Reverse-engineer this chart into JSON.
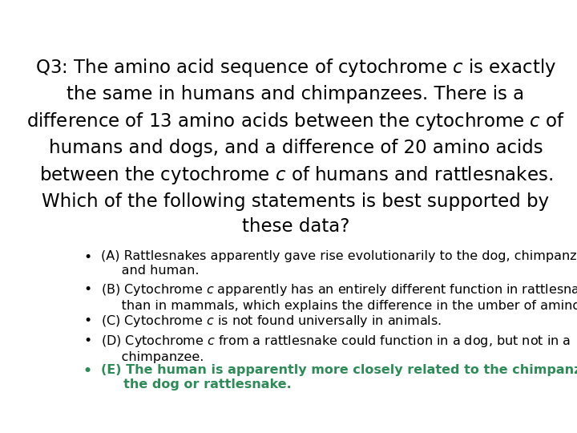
{
  "bg_color": "#ffffff",
  "title_text": "Q3: The amino acid sequence of cytochrome $c$ is exactly\nthe same in humans and chimpanzees. There is a\ndifference of 13 amino acids between the cytochrome $c$ of\nhumans and dogs, and a difference of 20 amino acids\nbetween the cytochrome $c$ of humans and rattlesnakes.\nWhich of the following statements is best supported by\nthese data?",
  "title_fontsize": 16.5,
  "title_fontweight": "normal",
  "title_color": "#000000",
  "title_linespacing": 1.45,
  "bullet_fontsize": 11.5,
  "bullet_linespacing": 1.25,
  "bullet_color_normal": "#000000",
  "bullet_color_highlight": "#2e8b57",
  "bullet_items": [
    {
      "text": "(A) Rattlesnakes apparently gave rise evolutionarily to the dog, chimpanzee,\n     and human.",
      "color": "#000000",
      "bold": false
    },
    {
      "text": "(B) Cytochrome $c$ apparently has an entirely different function in rattlesnakes\n     than in mammals, which explains the difference in the umber of amino acids.",
      "color": "#000000",
      "bold": false
    },
    {
      "text": "(C) Cytochrome $c$ is not found universally in animals.",
      "color": "#000000",
      "bold": false
    },
    {
      "text": "(D) Cytochrome $c$ from a rattlesnake could function in a dog, but not in a\n     chimpanzee.",
      "color": "#000000",
      "bold": false
    },
    {
      "text": "(E) The human is apparently more closely related to the chimpanzee than to\n     the dog or rattlesnake.",
      "color": "#2e8b57",
      "bold": true
    }
  ]
}
